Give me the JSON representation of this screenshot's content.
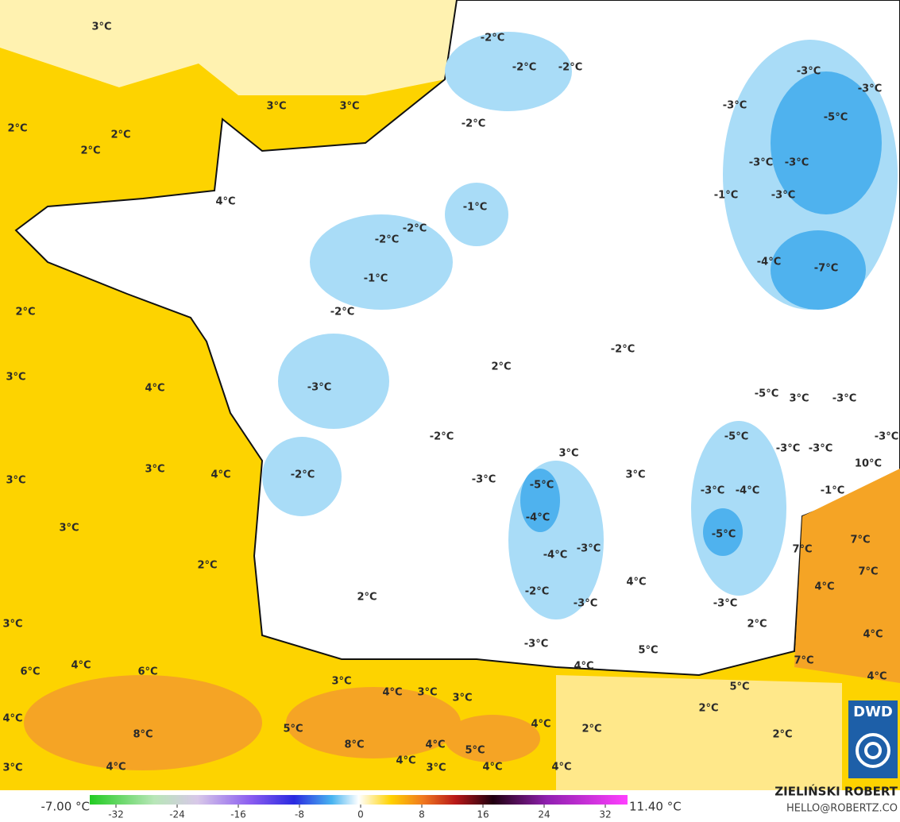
{
  "map": {
    "labels": [
      "3°C",
      "-2°C",
      "-2°C",
      "-2°C",
      "-3°C",
      "-3°C",
      "3°C",
      "3°C",
      "-3°C",
      "-5°C",
      "-2°C",
      "2°C",
      "2°C",
      "2°C",
      "-3°C",
      "-3°C",
      "-1°C",
      "-3°C",
      "4°C",
      "-1°C",
      "-2°C",
      "-2°C",
      "-4°C",
      "-7°C",
      "-1°C",
      "2°C",
      "-2°C",
      "-2°C",
      "2°C",
      "3°C",
      "4°C",
      "-3°C",
      "-5°C",
      "3°C",
      "-3°C",
      "-2°C",
      "-5°C",
      "-3°C",
      "3°C",
      "-3°C",
      "-3°C",
      "10°C",
      "3°C",
      "4°C",
      "3°C",
      "-2°C",
      "-3°C",
      "3°C",
      "-5°C",
      "-3°C",
      "-4°C",
      "-1°C",
      "-4°C",
      "3°C",
      "-5°C",
      "7°C",
      "7°C",
      "-4°C",
      "-3°C",
      "2°C",
      "7°C",
      "4°C",
      "4°C",
      "-2°C",
      "2°C",
      "-3°C",
      "-3°C",
      "3°C",
      "2°C",
      "4°C",
      "-3°C",
      "5°C",
      "7°C",
      "4°C",
      "6°C",
      "6°C",
      "4°C",
      "4°C",
      "3°C",
      "5°C",
      "4°C",
      "3°C",
      "3°C",
      "2°C",
      "4°C",
      "5°C",
      "4°C",
      "2°C",
      "8°C",
      "2°C",
      "8°C",
      "4°C",
      "5°C",
      "4°C",
      "4°C",
      "3°C",
      "4°C",
      "4°C",
      "3°C"
    ]
  },
  "colorbar": {
    "min_label": "-7.00 °C",
    "max_label": "11.40 °C",
    "ticks": [
      -32,
      -24,
      -16,
      -8,
      0,
      8,
      16,
      24,
      32
    ]
  },
  "credit": {
    "name": "ZIELIŃSKI ROBERT",
    "contact": "HELLO@ROBERTZ.CO"
  },
  "logo": "DWD"
}
